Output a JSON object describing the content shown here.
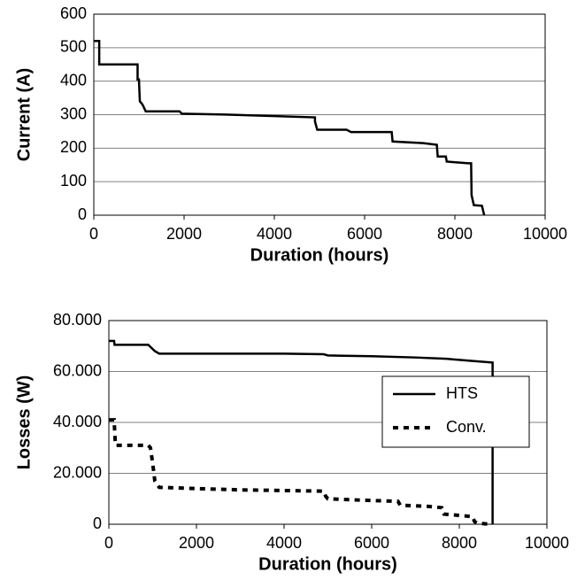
{
  "chart_data": [
    {
      "type": "line",
      "xlabel": "Duration (hours)",
      "ylabel": "Current (A)",
      "xlim": [
        0,
        10000
      ],
      "xticks": [
        0,
        2000,
        4000,
        6000,
        8000,
        10000
      ],
      "ylim": [
        0,
        600
      ],
      "yticks": [
        0,
        100,
        200,
        300,
        400,
        500,
        600
      ],
      "grid": true,
      "series": [
        {
          "color": "#000000",
          "dash": false,
          "x": [
            0,
            120,
            120,
            970,
            970,
            1000,
            1020,
            1080,
            1150,
            1900,
            1950,
            3000,
            4900,
            4900,
            4950,
            5600,
            5700,
            6600,
            6620,
            7300,
            7600,
            7620,
            7800,
            7820,
            8300,
            8360,
            8370,
            8420,
            8600,
            8650
          ],
          "values": [
            520,
            520,
            450,
            450,
            405,
            405,
            340,
            330,
            310,
            310,
            303,
            300,
            292,
            280,
            255,
            255,
            248,
            248,
            220,
            215,
            210,
            175,
            175,
            160,
            155,
            155,
            60,
            30,
            28,
            0
          ]
        }
      ]
    },
    {
      "type": "line",
      "xlabel": "Duration (hours)",
      "ylabel": "Losses (W)",
      "xlim": [
        0,
        10000
      ],
      "xticks": [
        0,
        2000,
        4000,
        6000,
        8000,
        10000
      ],
      "ylim": [
        0,
        80
      ],
      "yticks": [
        {
          "value": 0,
          "label": "0"
        },
        {
          "value": 20,
          "label": "20.000"
        },
        {
          "value": 40,
          "label": "40.000"
        },
        {
          "value": 60,
          "label": "60.000"
        },
        {
          "value": 80,
          "label": "80.000"
        }
      ],
      "grid": true,
      "legend": "right",
      "series": [
        {
          "name": "HTS",
          "color": "#000000",
          "dash": false,
          "x": [
            0,
            120,
            130,
            900,
            1050,
            1150,
            2000,
            4000,
            4900,
            5000,
            6000,
            7000,
            7700,
            8400,
            8760,
            8760
          ],
          "values": [
            72,
            72,
            70.5,
            70.5,
            68,
            67,
            67,
            67,
            66.8,
            66.3,
            66,
            65.5,
            65,
            64,
            63.5,
            0
          ]
        },
        {
          "name": "Conv.",
          "color": "#000000",
          "dash": true,
          "x": [
            0,
            120,
            150,
            900,
            950,
            1000,
            1050,
            1150,
            2000,
            3000,
            4900,
            4950,
            5000,
            5700,
            6600,
            6650,
            7300,
            7600,
            7650,
            8300,
            8350,
            8400,
            8700
          ],
          "values": [
            41,
            41,
            31,
            31,
            30,
            24,
            17,
            14.5,
            14,
            13.5,
            13,
            11,
            10,
            9.5,
            9,
            7.5,
            7,
            6.5,
            4,
            3,
            1,
            0.5,
            0
          ]
        }
      ]
    }
  ]
}
